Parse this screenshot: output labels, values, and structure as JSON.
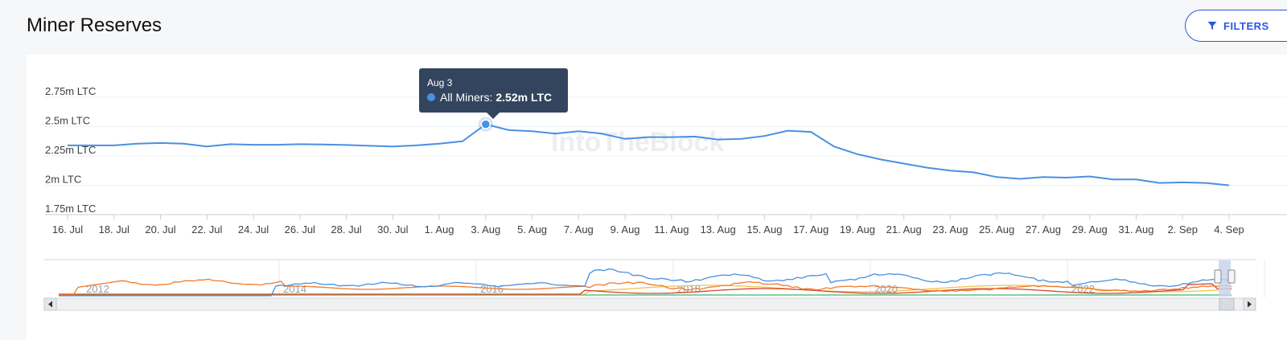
{
  "page": {
    "title": "Miner Reserves",
    "filters_label": "FILTERS",
    "watermark": "IntoTheBlock"
  },
  "tooltip": {
    "date": "Aug 3",
    "series": "All Miners:",
    "value": "2.52m LTC"
  },
  "navigator": {
    "year_labels": [
      "2012",
      "2014",
      "2016",
      "2018",
      "2020",
      "2022"
    ]
  },
  "colors": {
    "series_main": "#4a90e2",
    "nav_blue": "#4a90e2",
    "nav_orange": "#f07a2a",
    "nav_red": "#d9452c",
    "nav_yellow": "#f2c14e",
    "nav_green": "#3bb36b",
    "button_accent": "#2b56e6",
    "tooltip_bg": "#33455e"
  },
  "chart_data": {
    "type": "line",
    "title": "Miner Reserves",
    "series": [
      {
        "name": "All Miners",
        "x": [
          "Jul 16",
          "Jul 17",
          "Jul 18",
          "Jul 19",
          "Jul 20",
          "Jul 21",
          "Jul 22",
          "Jul 23",
          "Jul 24",
          "Jul 25",
          "Jul 26",
          "Jul 27",
          "Jul 28",
          "Jul 29",
          "Jul 30",
          "Jul 31",
          "Aug 1",
          "Aug 2",
          "Aug 3",
          "Aug 4",
          "Aug 5",
          "Aug 6",
          "Aug 7",
          "Aug 8",
          "Aug 9",
          "Aug 10",
          "Aug 11",
          "Aug 12",
          "Aug 13",
          "Aug 14",
          "Aug 15",
          "Aug 16",
          "Aug 17",
          "Aug 18",
          "Aug 19",
          "Aug 20",
          "Aug 21",
          "Aug 22",
          "Aug 23",
          "Aug 24",
          "Aug 25",
          "Aug 26",
          "Aug 27",
          "Aug 28",
          "Aug 29",
          "Aug 30",
          "Aug 31",
          "Sep 1",
          "Sep 2",
          "Sep 3",
          "Sep 4"
        ],
        "values": [
          2.34,
          2.34,
          2.34,
          2.355,
          2.36,
          2.355,
          2.33,
          2.35,
          2.345,
          2.345,
          2.35,
          2.348,
          2.343,
          2.336,
          2.33,
          2.34,
          2.355,
          2.375,
          2.52,
          2.47,
          2.46,
          2.44,
          2.46,
          2.44,
          2.395,
          2.41,
          2.41,
          2.415,
          2.39,
          2.395,
          2.42,
          2.465,
          2.455,
          2.33,
          2.265,
          2.22,
          2.185,
          2.15,
          2.125,
          2.11,
          2.07,
          2.055,
          2.07,
          2.065,
          2.075,
          2.05,
          2.05,
          2.02,
          2.025,
          2.02,
          2.0
        ]
      }
    ],
    "x_tick_labels": [
      "16. Jul",
      "18. Jul",
      "20. Jul",
      "22. Jul",
      "24. Jul",
      "26. Jul",
      "28. Jul",
      "30. Jul",
      "1. Aug",
      "3. Aug",
      "5. Aug",
      "7. Aug",
      "9. Aug",
      "11. Aug",
      "13. Aug",
      "15. Aug",
      "17. Aug",
      "19. Aug",
      "21. Aug",
      "23. Aug",
      "25. Aug",
      "27. Aug",
      "29. Aug",
      "31. Aug",
      "2. Sep",
      "4. Sep"
    ],
    "y_ticks": [
      {
        "value": 1.75,
        "label": "1.75m LTC"
      },
      {
        "value": 2.0,
        "label": "2m LTC"
      },
      {
        "value": 2.25,
        "label": "2.25m LTC"
      },
      {
        "value": 2.5,
        "label": "2.5m LTC"
      },
      {
        "value": 2.75,
        "label": "2.75m LTC"
      }
    ],
    "ylim": [
      1.75,
      2.75
    ],
    "highlighted_point": {
      "x": "Aug 3",
      "value": 2.52
    },
    "grid": true,
    "legend": "none"
  }
}
